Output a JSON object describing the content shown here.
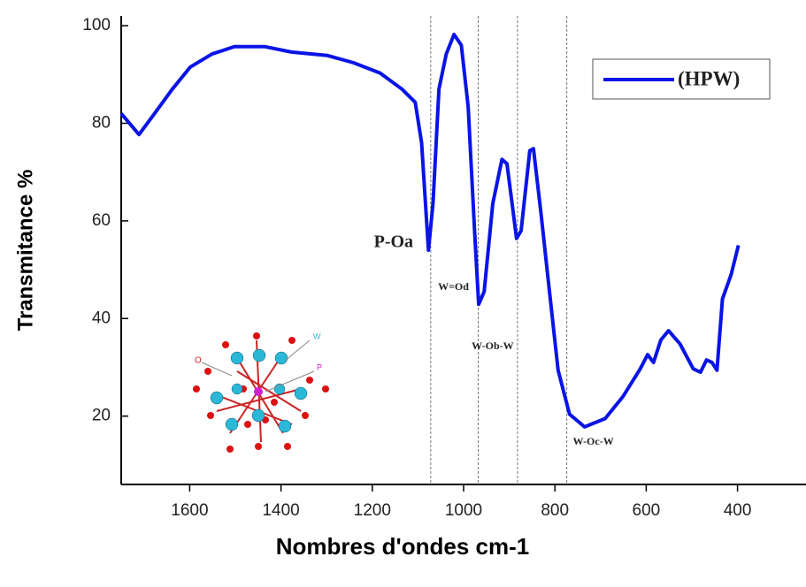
{
  "chart_data": {
    "type": "line",
    "x_label": "Nombres d'ondes cm-1",
    "y_label": "Transmitance %",
    "xlim": [
      1750,
      250
    ],
    "ylim": [
      6,
      102
    ],
    "xticks": [
      1600,
      1400,
      1200,
      1000,
      800,
      600,
      400
    ],
    "yticks": [
      20,
      40,
      60,
      80,
      100
    ],
    "legend_position": "upper right",
    "series": [
      {
        "name": "(HPW)",
        "color": "#0a14e6",
        "x": [
          1750,
          1711,
          1677,
          1638,
          1599,
          1551,
          1502,
          1435,
          1377,
          1299,
          1241,
          1183,
          1135,
          1106,
          1092,
          1077,
          1067,
          1054,
          1038,
          1021,
          1005,
          990,
          976,
          967,
          955,
          936,
          916,
          905,
          884,
          874,
          855,
          847,
          831,
          812,
          793,
          768,
          735,
          690,
          651,
          613,
          597,
          584,
          568,
          551,
          526,
          497,
          481,
          468,
          456,
          445,
          433,
          414,
          398
        ],
        "values": [
          82,
          77.7,
          82,
          87,
          91.5,
          94.2,
          95.7,
          95.7,
          94.6,
          93.9,
          92.4,
          90.3,
          87,
          84.3,
          76,
          54,
          63.6,
          87,
          94.2,
          98.2,
          96,
          83.4,
          58,
          42.9,
          45.5,
          63.6,
          72.6,
          71.7,
          56.4,
          58,
          74.4,
          74.8,
          62,
          45.6,
          29.4,
          20.4,
          17.8,
          19.5,
          24,
          29.7,
          32.6,
          31,
          35.6,
          37.5,
          34.8,
          29.7,
          29,
          31.5,
          31,
          29.4,
          44,
          49,
          55
        ]
      }
    ],
    "annotations": [
      {
        "text": "P-Oa",
        "x": 1072
      },
      {
        "text": "W=Od",
        "x": 968
      },
      {
        "text": "W-Ob-W",
        "x": 882
      },
      {
        "text": "W-Oc-W",
        "x": 774
      }
    ],
    "inset_labels": [
      "W",
      "O",
      "P"
    ]
  }
}
